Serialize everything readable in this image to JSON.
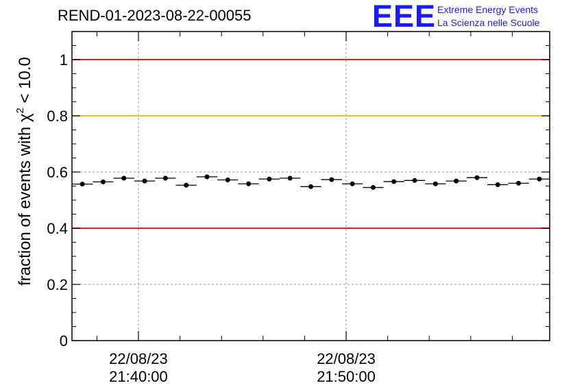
{
  "header": {
    "run_title": "REND-01-2023-08-22-00055",
    "logo_text": "EEE",
    "logo_line1": "Extreme Energy Events",
    "logo_line2": "La Scienza nelle Scuole"
  },
  "chart_data": {
    "type": "scatter",
    "title": "REND-01-2023-08-22-00055",
    "xlabel": "",
    "ylabel": "fraction of events with χ² < 10.0",
    "ylabel_parts": {
      "main": "fraction of events with χ",
      "sup": "2",
      "tail": " < 10.0"
    },
    "ylim": [
      0,
      1.1
    ],
    "yticks": [
      0,
      0.2,
      0.4,
      0.6,
      0.8,
      1
    ],
    "ytick_labels": [
      "0",
      "0.2",
      "0.4",
      "0.6",
      "0.8",
      "1"
    ],
    "xlim_minutes": [
      -3.2,
      19.8
    ],
    "xticks_major": [
      {
        "x": 0,
        "label_date": "22/08/23",
        "label_time": "21:40:00"
      },
      {
        "x": 10,
        "label_date": "22/08/23",
        "label_time": "21:50:00"
      }
    ],
    "xticks_minor": [
      -2,
      2,
      4,
      6,
      8,
      12,
      14,
      16,
      18
    ],
    "grid": true,
    "reference_lines": [
      {
        "y": 1.0,
        "color": "#e0201a"
      },
      {
        "y": 0.8,
        "color": "#f5c000"
      },
      {
        "y": 0.4,
        "color": "#e0201a"
      }
    ],
    "point_color": "#000000",
    "bin_width": 1,
    "series": [
      {
        "x": [
          -2.7,
          -1.7,
          -0.7,
          0.3,
          1.3,
          2.3,
          3.3,
          4.3,
          5.3,
          6.3,
          7.3,
          8.3,
          9.3,
          10.3,
          11.3,
          12.3,
          13.3,
          14.3,
          15.3,
          16.3,
          17.3,
          18.3,
          19.3
        ],
        "y": [
          0.557,
          0.565,
          0.578,
          0.568,
          0.578,
          0.553,
          0.583,
          0.572,
          0.558,
          0.575,
          0.578,
          0.548,
          0.573,
          0.558,
          0.545,
          0.566,
          0.57,
          0.558,
          0.568,
          0.58,
          0.555,
          0.56,
          0.575
        ],
        "yerr": [
          0.006,
          0.006,
          0.006,
          0.006,
          0.006,
          0.006,
          0.006,
          0.006,
          0.006,
          0.006,
          0.006,
          0.006,
          0.006,
          0.006,
          0.006,
          0.006,
          0.006,
          0.006,
          0.006,
          0.006,
          0.006,
          0.006,
          0.006
        ]
      }
    ]
  }
}
